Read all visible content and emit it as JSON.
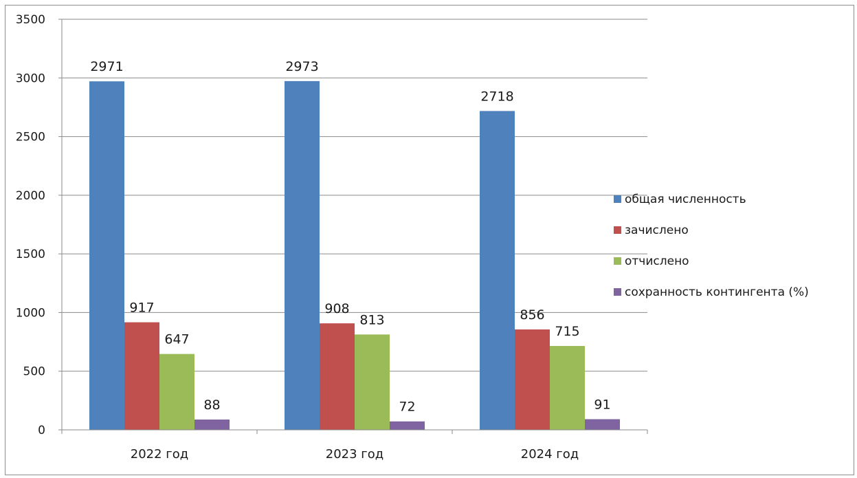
{
  "chart_data": {
    "type": "bar",
    "categories": [
      "2022 год",
      "2023 год",
      "2024 год"
    ],
    "series": [
      {
        "name": "общая численность",
        "values": [
          2971,
          2973,
          2718
        ],
        "color": "#4f81bd"
      },
      {
        "name": "зачислено",
        "values": [
          917,
          908,
          856
        ],
        "color": "#c0504d"
      },
      {
        "name": "отчислено",
        "values": [
          647,
          813,
          715
        ],
        "color": "#9bbb59"
      },
      {
        "name": "сохранность контингента (%)",
        "values": [
          88,
          72,
          91
        ],
        "color": "#8064a2"
      }
    ],
    "y_ticks": [
      "0",
      "500",
      "1000",
      "1500",
      "2000",
      "2500",
      "3000",
      "3500"
    ],
    "ylim": [
      0,
      3500
    ],
    "grid": true,
    "legend_position": "right",
    "data_labels": true
  }
}
